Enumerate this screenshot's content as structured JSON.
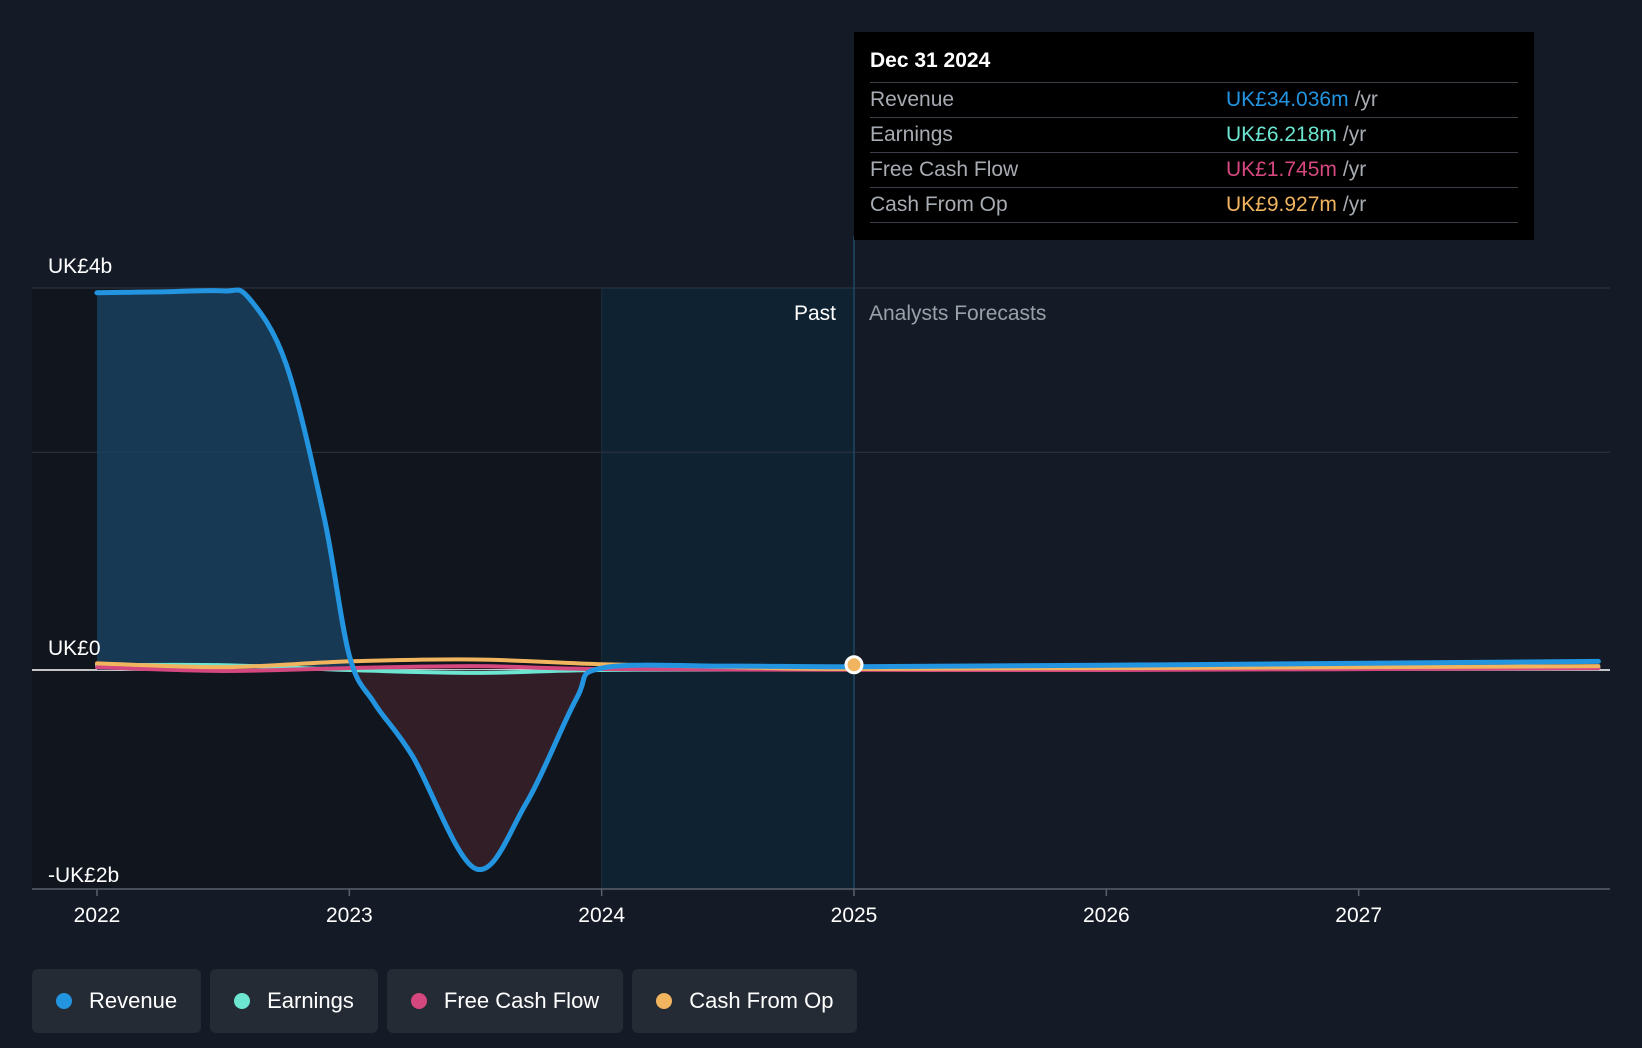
{
  "tooltip": {
    "date": "Dec 31 2024",
    "rows": [
      {
        "label": "Revenue",
        "value": "UK£34.036m",
        "unit": "/yr",
        "color": "#2394df"
      },
      {
        "label": "Earnings",
        "value": "UK£6.218m",
        "unit": "/yr",
        "color": "#6ce5d1"
      },
      {
        "label": "Free Cash Flow",
        "value": "UK£1.745m",
        "unit": "/yr",
        "color": "#d4477f"
      },
      {
        "label": "Cash From Op",
        "value": "UK£9.927m",
        "unit": "/yr",
        "color": "#f1b45f"
      }
    ]
  },
  "regions": {
    "past_label": "Past",
    "forecast_label": "Analysts Forecasts"
  },
  "legend": [
    {
      "label": "Revenue",
      "color": "#2394df"
    },
    {
      "label": "Earnings",
      "color": "#6ce5d1"
    },
    {
      "label": "Free Cash Flow",
      "color": "#d4477f"
    },
    {
      "label": "Cash From Op",
      "color": "#f1b45f"
    }
  ],
  "chart_data": {
    "type": "line",
    "title": "",
    "xlabel": "",
    "ylabel": "",
    "unit": "GBP billions",
    "xlim": [
      2021.75,
      2027.95
    ],
    "ylim": [
      -2.3,
      4
    ],
    "x_ticks": [
      2022,
      2023,
      2024,
      2025,
      2026,
      2027
    ],
    "x_tick_labels": [
      "2022",
      "2023",
      "2024",
      "2025",
      "2026",
      "2027"
    ],
    "y_ticks": [
      4,
      0,
      -2
    ],
    "y_tick_labels": [
      "UK£4b",
      "UK£0",
      "-UK£2b"
    ],
    "gridlines": [
      4,
      2.28,
      0
    ],
    "past_end": 2025,
    "grid": true,
    "legend_position": "bottom-left",
    "series": [
      {
        "name": "Revenue",
        "color": "#2394df",
        "points": [
          [
            2022.0,
            3.95
          ],
          [
            2022.25,
            3.96
          ],
          [
            2022.5,
            3.97
          ],
          [
            2022.6,
            3.9
          ],
          [
            2022.75,
            3.2
          ],
          [
            2022.9,
            1.6
          ],
          [
            2023.0,
            0.15
          ],
          [
            2023.1,
            -0.35
          ],
          [
            2023.25,
            -0.9
          ],
          [
            2023.5,
            -2.08
          ],
          [
            2023.7,
            -1.4
          ],
          [
            2023.9,
            -0.3
          ],
          [
            2024.0,
            0.02
          ],
          [
            2024.5,
            0.04
          ],
          [
            2025.0,
            0.034
          ],
          [
            2026.0,
            0.05
          ],
          [
            2027.95,
            0.09
          ]
        ]
      },
      {
        "name": "Earnings",
        "color": "#6ce5d1",
        "points": [
          [
            2022.0,
            0.05
          ],
          [
            2022.5,
            0.05
          ],
          [
            2023.0,
            0.0
          ],
          [
            2023.5,
            -0.03
          ],
          [
            2024.0,
            0.0
          ],
          [
            2025.0,
            0.006
          ],
          [
            2027.95,
            0.02
          ]
        ]
      },
      {
        "name": "Free Cash Flow",
        "color": "#d4477f",
        "points": [
          [
            2022.0,
            0.03
          ],
          [
            2022.5,
            -0.01
          ],
          [
            2023.0,
            0.02
          ],
          [
            2023.5,
            0.04
          ],
          [
            2024.0,
            0.01
          ],
          [
            2025.0,
            0.002
          ],
          [
            2026.0,
            0.0
          ],
          [
            2027.95,
            0.02
          ]
        ]
      },
      {
        "name": "Cash From Op",
        "color": "#f1b45f",
        "points": [
          [
            2022.0,
            0.07
          ],
          [
            2022.5,
            0.03
          ],
          [
            2023.0,
            0.09
          ],
          [
            2023.5,
            0.11
          ],
          [
            2024.0,
            0.06
          ],
          [
            2024.5,
            0.03
          ],
          [
            2025.0,
            0.01
          ],
          [
            2026.0,
            0.02
          ],
          [
            2027.95,
            0.04
          ]
        ]
      }
    ]
  }
}
